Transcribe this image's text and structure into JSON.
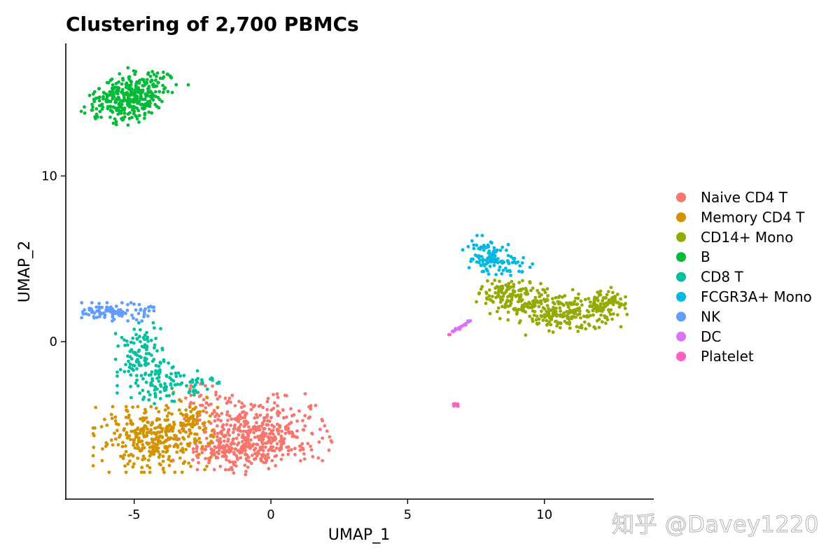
{
  "chart_data": {
    "type": "scatter",
    "title": "Clustering of 2,700 PBMCs",
    "xlabel": "UMAP_1",
    "ylabel": "UMAP_2",
    "xlim": [
      -7.5,
      14
    ],
    "ylim": [
      -9.5,
      18
    ],
    "xticks": [
      -5,
      0,
      5,
      10
    ],
    "xtick_labels": [
      "-5",
      "0",
      "5",
      "10"
    ],
    "yticks": [
      0,
      10
    ],
    "ytick_labels": [
      "0",
      "10"
    ],
    "grid": false,
    "legend_position": "right",
    "series": [
      {
        "name": "Naive CD4 T",
        "color": "#F8766D",
        "clusters": [
          {
            "cx": -0.4,
            "cy": -5.6,
            "sx": 1.1,
            "sy": 1.0,
            "rot": 15,
            "n": 380
          },
          {
            "cx": -1.6,
            "cy": -6.4,
            "sx": 0.9,
            "sy": 0.6,
            "rot": 0,
            "n": 150
          },
          {
            "cx": -2.2,
            "cy": -3.6,
            "sx": 0.5,
            "sy": 0.5,
            "rot": 0,
            "n": 40
          }
        ]
      },
      {
        "name": "Memory CD4 T",
        "color": "#D39200",
        "clusters": [
          {
            "cx": -4.3,
            "cy": -5.9,
            "sx": 1.0,
            "sy": 0.9,
            "rot": 0,
            "n": 330
          },
          {
            "cx": -3.0,
            "cy": -4.6,
            "sx": 0.5,
            "sy": 0.7,
            "rot": 0,
            "n": 60
          }
        ]
      },
      {
        "name": "CD14+ Mono",
        "color": "#93AA00",
        "clusters": [
          {
            "cx": 9.3,
            "cy": 2.4,
            "sx": 0.8,
            "sy": 0.55,
            "rot": -15,
            "n": 150
          },
          {
            "cx": 11.0,
            "cy": 1.7,
            "sx": 0.9,
            "sy": 0.5,
            "rot": 10,
            "n": 190
          },
          {
            "cx": 12.3,
            "cy": 2.3,
            "sx": 0.5,
            "sy": 0.35,
            "rot": 30,
            "n": 60
          },
          {
            "cx": 8.5,
            "cy": 3.0,
            "sx": 0.3,
            "sy": 0.4,
            "rot": 0,
            "n": 40
          }
        ]
      },
      {
        "name": "B",
        "color": "#00BA38",
        "clusters": [
          {
            "cx": -5.1,
            "cy": 14.8,
            "sx": 0.85,
            "sy": 0.55,
            "rot": 50,
            "n": 360
          }
        ]
      },
      {
        "name": "CD8 T",
        "color": "#00C19F",
        "clusters": [
          {
            "cx": -4.8,
            "cy": -0.4,
            "sx": 0.4,
            "sy": 0.7,
            "rot": 0,
            "n": 80
          },
          {
            "cx": -4.3,
            "cy": -2.2,
            "sx": 0.6,
            "sy": 0.7,
            "rot": 0,
            "n": 90
          },
          {
            "cx": -3.0,
            "cy": -2.4,
            "sx": 0.5,
            "sy": 0.4,
            "rot": 0,
            "n": 40
          }
        ]
      },
      {
        "name": "FCGR3A+ Mono",
        "color": "#00B9E3",
        "clusters": [
          {
            "cx": 7.8,
            "cy": 5.2,
            "sx": 0.4,
            "sy": 0.55,
            "rot": 0,
            "n": 80
          },
          {
            "cx": 8.6,
            "cy": 4.6,
            "sx": 0.45,
            "sy": 0.35,
            "rot": 0,
            "n": 40
          }
        ]
      },
      {
        "name": "NK",
        "color": "#619CFF",
        "clusters": [
          {
            "cx": -5.6,
            "cy": 1.8,
            "sx": 0.6,
            "sy": 0.25,
            "rot": 0,
            "n": 110
          }
        ]
      },
      {
        "name": "DC",
        "color": "#DB72FB",
        "line": {
          "x0": 6.6,
          "y0": 0.55,
          "x1": 7.3,
          "y1": 1.25,
          "n": 24
        }
      },
      {
        "name": "Platelet",
        "color": "#FF61C3",
        "clusters": [
          {
            "cx": 6.75,
            "cy": -3.8,
            "sx": 0.05,
            "sy": 0.05,
            "rot": 0,
            "n": 10
          },
          {
            "cx": 6.5,
            "cy": 0.45,
            "sx": 0.03,
            "sy": 0.03,
            "rot": 0,
            "n": 2
          }
        ]
      }
    ]
  },
  "watermark": "知乎 @Davey1220"
}
